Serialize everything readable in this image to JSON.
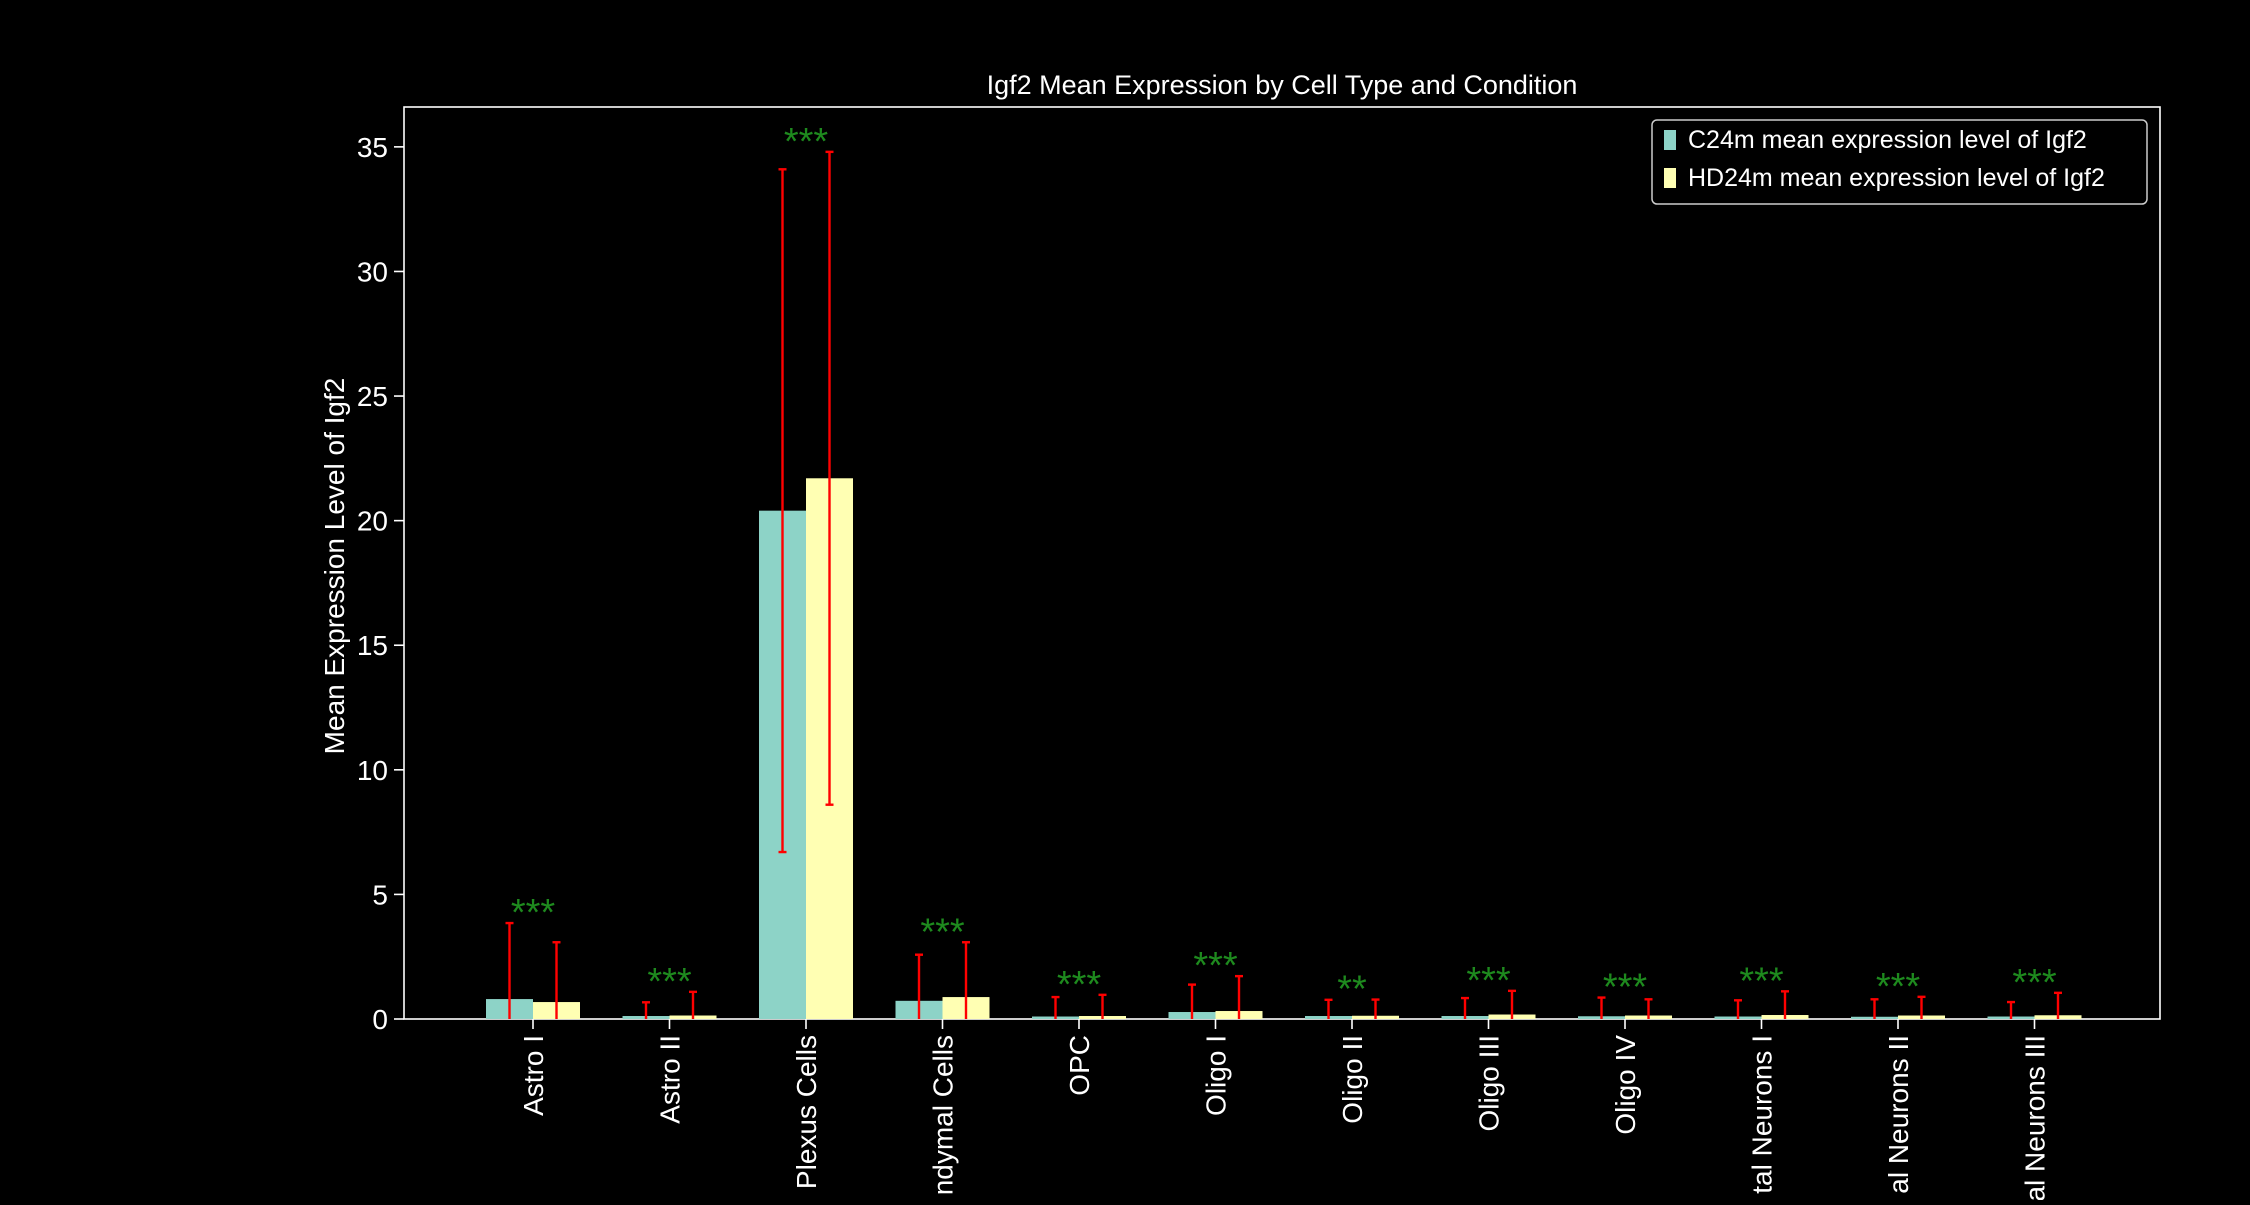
{
  "chart_data": {
    "type": "bar",
    "title": "Igf2 Mean Expression by Cell Type and Condition",
    "xlabel": "",
    "ylabel": "Mean Expression Level of Igf2",
    "ylim": [
      0,
      36.6
    ],
    "yticks": [
      0,
      5,
      10,
      15,
      20,
      25,
      30,
      35
    ],
    "ytick_labels": [
      "0",
      "5",
      "10",
      "15",
      "20",
      "25",
      "30",
      "35"
    ],
    "categories": [
      "Astro I",
      "Astro II",
      "Plexus Cells",
      "ndymal Cells",
      "OPC",
      "Oligo I",
      "Oligo II",
      "Oligo III",
      "Oligo IV",
      "tal Neurons I",
      "al Neurons II",
      "al Neurons III"
    ],
    "series": [
      {
        "name": "C24m mean expression level of Igf2",
        "color": "#8dd3c7",
        "values": [
          0.8,
          0.12,
          20.4,
          0.73,
          0.1,
          0.28,
          0.12,
          0.12,
          0.11,
          0.1,
          0.09,
          0.1
        ],
        "error": [
          3.05,
          0.55,
          13.7,
          1.85,
          0.78,
          1.1,
          0.65,
          0.72,
          0.75,
          0.65,
          0.7,
          0.58
        ]
      },
      {
        "name": "HD24m mean expression level of Igf2",
        "color": "#ffffb3",
        "values": [
          0.68,
          0.14,
          21.7,
          0.88,
          0.12,
          0.32,
          0.13,
          0.18,
          0.14,
          0.16,
          0.14,
          0.15
        ],
        "error": [
          2.4,
          0.95,
          13.1,
          2.2,
          0.85,
          1.4,
          0.65,
          0.95,
          0.65,
          0.95,
          0.75,
          0.9
        ]
      }
    ],
    "significance": [
      "***",
      "***",
      "***",
      "***",
      "***",
      "***",
      "**",
      "***",
      "***",
      "***",
      "***",
      "***"
    ],
    "significance_color": "#1e8a1e",
    "errorbar_color": "#ff0000",
    "legend_position": "top-right",
    "grid": false
  }
}
